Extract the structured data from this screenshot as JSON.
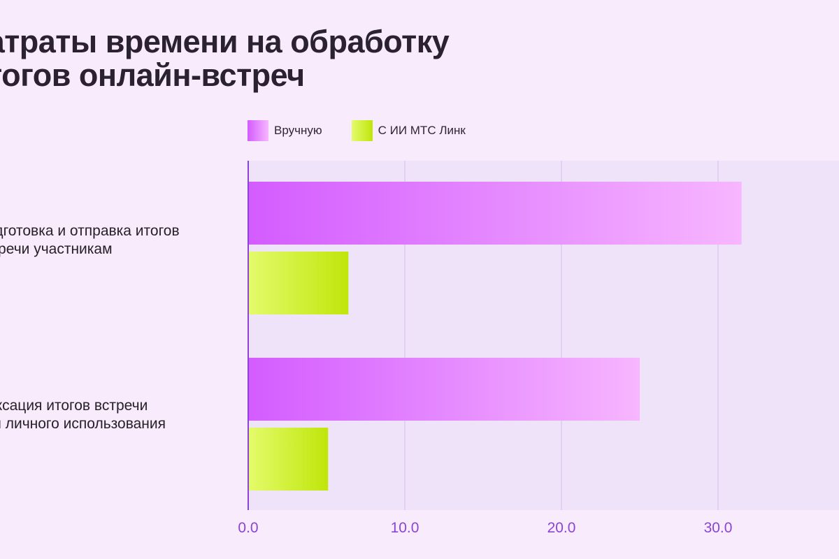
{
  "title_lines": [
    "Затраты времени на обработку",
    "итогов онлайн-встреч"
  ],
  "legend": [
    {
      "label": "Вручную",
      "color_from": "#d35cff",
      "color_to": "#f7b6ff"
    },
    {
      "label": "С ИИ МТС Линк",
      "color_from": "#e4fb6c",
      "color_to": "#bfe60a"
    }
  ],
  "colors": {
    "background": "#f8ebfc",
    "plot_band": "#efe3fa",
    "axis": "#8a45d6",
    "grid": "#dccbef",
    "tick_text": "#8a45d6"
  },
  "chart_data": {
    "type": "bar",
    "orientation": "horizontal",
    "categories": [
      [
        "Подготовка и отправка итогов",
        "встречи участникам"
      ],
      [
        "Фиксация итогов встречи",
        "для личного использования"
      ]
    ],
    "series": [
      {
        "name": "Вручную",
        "values": [
          31.5,
          25.0
        ]
      },
      {
        "name": "С ИИ МТС Линк",
        "values": [
          6.4,
          5.1
        ]
      }
    ],
    "xlim": [
      0,
      37.5
    ],
    "x_ticks": [
      0,
      10,
      20,
      30
    ],
    "x_tick_labels": [
      "0.0",
      "10.0",
      "20.0",
      "30.0"
    ],
    "grid": true,
    "legend_position": "top"
  }
}
